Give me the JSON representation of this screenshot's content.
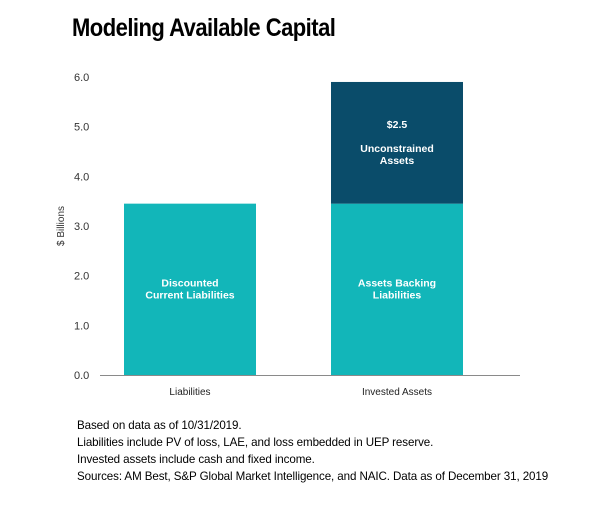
{
  "title": "Modeling Available Capital",
  "chart_data": {
    "type": "bar",
    "stacked": true,
    "categories": [
      "Liabilities",
      "Invested Assets"
    ],
    "ylabel": "$ Billions",
    "ylim": [
      0,
      6
    ],
    "yticks": [
      "0.0",
      "1.0",
      "2.0",
      "3.0",
      "4.0",
      "5.0",
      "6.0"
    ],
    "grid": false,
    "series": [
      {
        "values": [
          3.45,
          3.45
        ],
        "color": "#12B6B9",
        "labels": [
          "Discounted|Current Liabilities",
          "Assets Backing|Liabilities"
        ]
      },
      {
        "values": [
          0,
          2.45
        ],
        "color": "#0A4C6A",
        "labels": [
          "",
          "$2.5||Unconstrained|Assets"
        ]
      }
    ]
  },
  "notes": [
    "Based on data as of 10/31/2019.",
    "Liabilities include PV of loss, LAE, and loss embedded in UEP reserve.",
    "Invested assets include cash and fixed income.",
    "Sources: AM Best, S&P Global Market Intelligence, and NAIC. Data as of December 31, 2019"
  ]
}
